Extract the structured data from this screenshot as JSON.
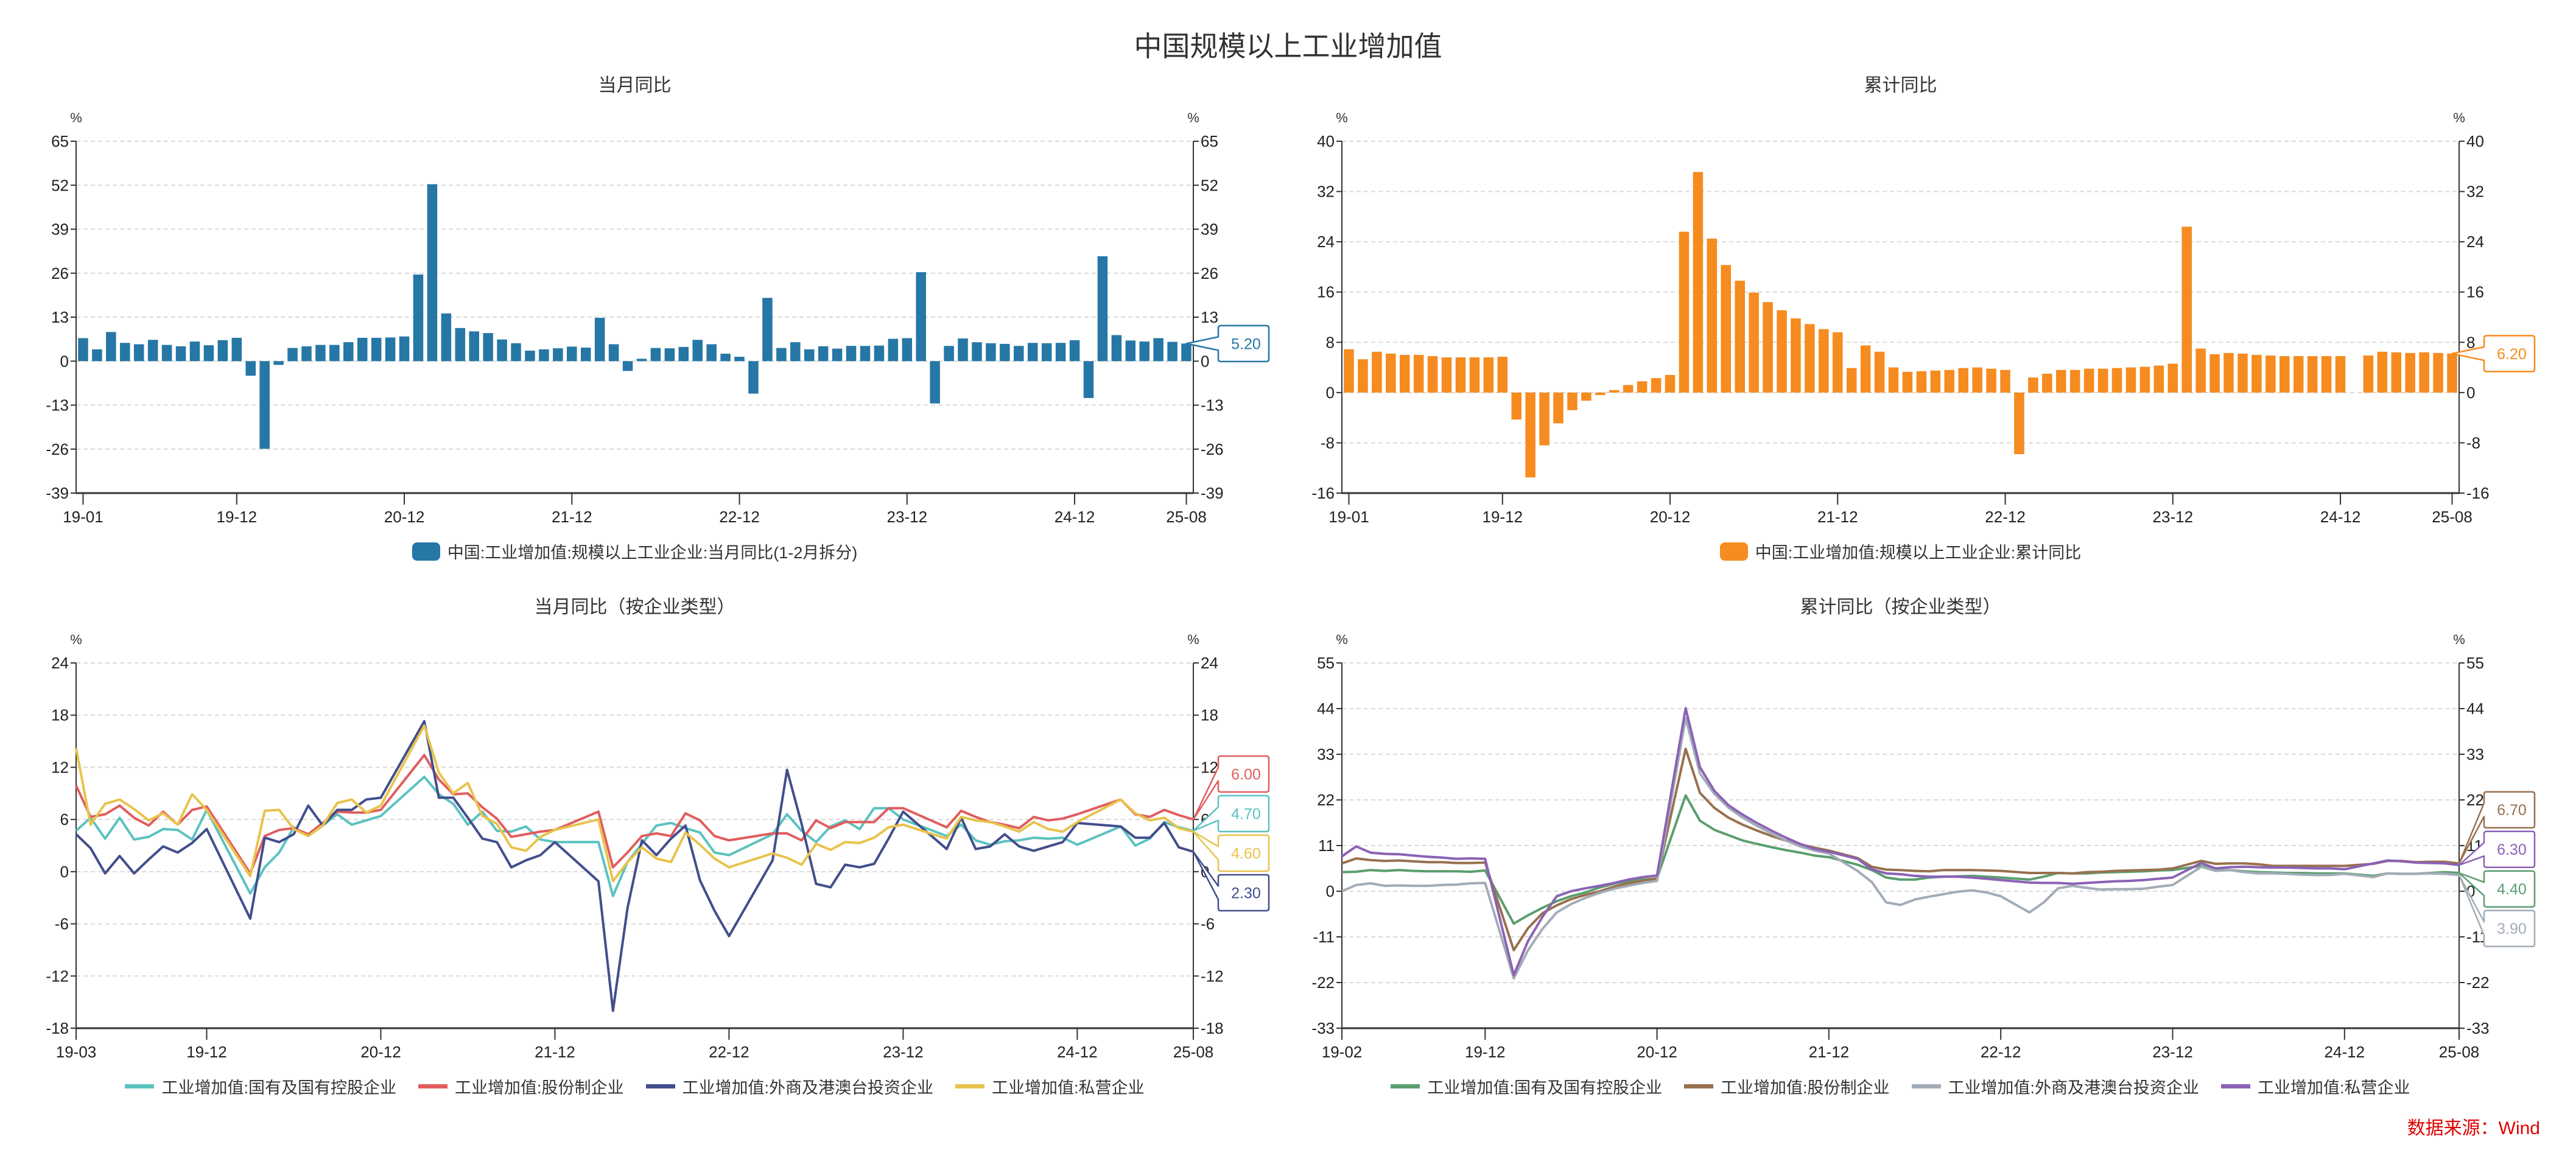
{
  "title": "中国规模以上工业增加值",
  "source": "数据来源：Wind",
  "chart_data": [
    {
      "type": "bar",
      "title": "当月同比",
      "unit_left": "%",
      "unit_right": "%",
      "x_start": "19-01",
      "xticks": [
        "19-01",
        "19-12",
        "20-12",
        "21-12",
        "22-12",
        "23-12",
        "24-12",
        "25-08"
      ],
      "ylim": [
        -39,
        65
      ],
      "yticks": [
        "65",
        "52",
        "39",
        "26",
        "13",
        "0",
        "-13",
        "-26",
        "-39"
      ],
      "grid": true,
      "legend_position": "bottom",
      "series": [
        {
          "name": "中国:工业增加值:规模以上工业企业:当月同比(1-2月拆分)",
          "color": "#2677a6",
          "last_label": "5.20",
          "values": [
            6.8,
            3.5,
            8.6,
            5.4,
            5.0,
            6.3,
            4.8,
            4.4,
            5.8,
            4.7,
            6.2,
            6.9,
            -4.3,
            -25.9,
            -1.1,
            3.9,
            4.4,
            4.8,
            4.8,
            5.6,
            6.9,
            6.9,
            7.0,
            7.3,
            25.6,
            52.3,
            14.1,
            9.8,
            8.8,
            8.3,
            6.4,
            5.3,
            3.1,
            3.5,
            3.8,
            4.3,
            4.0,
            12.8,
            5.0,
            -2.9,
            0.7,
            3.9,
            3.8,
            4.2,
            6.3,
            5.0,
            2.2,
            1.3,
            -9.6,
            18.7,
            3.9,
            5.6,
            3.5,
            4.4,
            3.7,
            4.5,
            4.5,
            4.6,
            6.6,
            6.8,
            26.3,
            -12.5,
            4.5,
            6.7,
            5.6,
            5.3,
            5.1,
            4.5,
            5.4,
            5.3,
            5.4,
            6.2,
            -10.9,
            31.0,
            7.7,
            6.1,
            5.8,
            6.8,
            5.7,
            5.2
          ]
        }
      ]
    },
    {
      "type": "bar",
      "title": "累计同比",
      "unit_left": "%",
      "unit_right": "%",
      "x_start": "19-01",
      "xticks": [
        "19-01",
        "19-12",
        "20-12",
        "21-12",
        "22-12",
        "23-12",
        "24-12",
        "25-08"
      ],
      "ylim": [
        -16,
        40
      ],
      "yticks": [
        "40",
        "32",
        "24",
        "16",
        "8",
        "0",
        "-8",
        "-16"
      ],
      "grid": true,
      "legend_position": "bottom",
      "series": [
        {
          "name": "中国:工业增加值:规模以上工业企业:累计同比",
          "color": "#f68b1f",
          "last_label": "6.20",
          "values": [
            6.9,
            5.3,
            6.5,
            6.2,
            6.0,
            6.0,
            5.8,
            5.6,
            5.6,
            5.6,
            5.6,
            5.7,
            -4.3,
            -13.5,
            -8.4,
            -4.9,
            -2.8,
            -1.3,
            -0.4,
            0.4,
            1.2,
            1.8,
            2.3,
            2.8,
            25.6,
            35.1,
            24.5,
            20.3,
            17.8,
            15.9,
            14.4,
            13.1,
            11.8,
            10.9,
            10.1,
            9.6,
            3.9,
            7.5,
            6.5,
            4.0,
            3.3,
            3.4,
            3.5,
            3.6,
            3.9,
            4.0,
            3.8,
            3.6,
            -9.8,
            2.4,
            3.0,
            3.6,
            3.6,
            3.8,
            3.8,
            3.9,
            4.0,
            4.1,
            4.3,
            4.6,
            26.4,
            7.0,
            6.1,
            6.3,
            6.2,
            6.0,
            5.9,
            5.8,
            5.8,
            5.8,
            5.8,
            5.8,
            null,
            5.9,
            6.5,
            6.4,
            6.3,
            6.4,
            6.3,
            6.2
          ]
        }
      ]
    },
    {
      "type": "line",
      "title": "当月同比（按企业类型）",
      "unit_left": "%",
      "unit_right": "%",
      "x_start": "19-03",
      "xticks": [
        "19-03",
        "19-12",
        "20-12",
        "21-12",
        "22-12",
        "23-12",
        "24-12",
        "25-08"
      ],
      "ylim": [
        -18,
        24
      ],
      "yticks": [
        "24",
        "18",
        "12",
        "6",
        "0",
        "-6",
        "-12",
        "-18"
      ],
      "grid": true,
      "legend_position": "bottom",
      "series": [
        {
          "name": "工业增加值:国有及国有控股企业",
          "color": "#5bc2c0",
          "last_label": "4.70",
          "values": [
            4.7,
            6.2,
            3.8,
            6.2,
            3.7,
            4.0,
            4.9,
            4.8,
            3.7,
            7.1,
            null,
            null,
            -2.5,
            0.5,
            2.2,
            5.1,
            4.1,
            5.3,
            6.6,
            5.4,
            5.9,
            6.4,
            null,
            null,
            10.9,
            8.9,
            7.8,
            5.4,
            6.9,
            4.7,
            4.6,
            5.2,
            3.7,
            3.4,
            null,
            null,
            3.4,
            -2.8,
            1.1,
            3.2,
            5.3,
            5.6,
            5.0,
            4.5,
            2.2,
            1.9,
            null,
            null,
            4.3,
            6.6,
            4.7,
            3.4,
            5.2,
            5.9,
            4.9,
            7.3,
            7.3,
            6.0,
            null,
            null,
            4.1,
            5.4,
            3.6,
            3.1,
            3.5,
            3.6,
            3.9,
            3.8,
            3.9,
            3.1,
            null,
            null,
            5.2,
            3.0,
            3.8,
            5.7,
            5.1,
            4.7
          ]
        },
        {
          "name": "工业增加值:股份制企业",
          "color": "#e15d5d",
          "last_label": "6.00",
          "values": [
            9.9,
            6.3,
            6.6,
            7.6,
            6.2,
            5.3,
            6.9,
            5.4,
            7.1,
            7.5,
            null,
            null,
            -0.2,
            4.1,
            4.8,
            5.0,
            4.3,
            5.6,
            6.9,
            6.8,
            6.8,
            7.1,
            null,
            null,
            13.4,
            10.6,
            8.9,
            9.0,
            7.4,
            6.1,
            4.0,
            4.3,
            4.6,
            4.8,
            null,
            null,
            6.9,
            0.5,
            2.2,
            4.1,
            4.4,
            4.1,
            6.7,
            5.9,
            4.1,
            3.6,
            null,
            null,
            4.4,
            4.4,
            3.6,
            5.9,
            5.0,
            5.7,
            5.7,
            5.7,
            7.3,
            7.3,
            null,
            null,
            5.1,
            7.0,
            6.3,
            5.7,
            5.4,
            5.0,
            6.3,
            5.9,
            6.1,
            6.6,
            null,
            null,
            8.3,
            6.6,
            6.3,
            7.1,
            6.5,
            6.0
          ]
        },
        {
          "name": "工业增加值:外商及港澳台投资企业",
          "color": "#424e8c",
          "last_label": "2.30",
          "values": [
            4.3,
            2.7,
            -0.2,
            1.8,
            -0.2,
            1.4,
            2.9,
            2.2,
            3.3,
            4.9,
            null,
            null,
            -5.4,
            3.9,
            3.4,
            4.3,
            7.6,
            5.3,
            7.1,
            7.1,
            8.3,
            8.5,
            null,
            null,
            17.3,
            8.5,
            8.5,
            6.2,
            3.8,
            3.4,
            0.5,
            1.3,
            1.9,
            3.4,
            null,
            null,
            -1.1,
            -16.0,
            -4.2,
            3.6,
            1.9,
            3.8,
            5.3,
            -1.0,
            -4.5,
            -7.4,
            null,
            null,
            1.3,
            11.7,
            5.5,
            -1.4,
            -1.8,
            0.8,
            0.5,
            0.9,
            3.8,
            6.9,
            null,
            null,
            2.6,
            6.2,
            2.6,
            2.9,
            4.3,
            2.9,
            2.4,
            2.9,
            3.4,
            5.6,
            null,
            null,
            5.2,
            3.9,
            3.9,
            5.6,
            2.8,
            2.3
          ]
        },
        {
          "name": "工业增加值:私营企业",
          "color": "#e8c34c",
          "last_label": "4.60",
          "values": [
            14.2,
            5.4,
            7.8,
            8.3,
            7.2,
            5.9,
            6.7,
            5.4,
            8.9,
            7.1,
            null,
            null,
            -0.5,
            7.0,
            7.1,
            4.9,
            4.1,
            5.3,
            7.9,
            8.3,
            6.8,
            7.6,
            null,
            null,
            16.8,
            11.4,
            9.0,
            10.2,
            6.4,
            5.5,
            2.8,
            2.4,
            4.0,
            4.8,
            null,
            null,
            6.0,
            -1.1,
            1.1,
            2.8,
            1.5,
            1.1,
            4.5,
            3.1,
            1.5,
            0.5,
            null,
            null,
            2.1,
            1.6,
            0.8,
            3.2,
            2.5,
            3.4,
            3.3,
            3.9,
            5.1,
            5.4,
            null,
            null,
            3.8,
            6.3,
            5.9,
            5.7,
            5.2,
            4.6,
            5.7,
            4.9,
            4.6,
            5.7,
            null,
            null,
            8.3,
            6.7,
            5.9,
            6.2,
            5.0,
            4.6
          ]
        }
      ]
    },
    {
      "type": "line",
      "title": "累计同比（按企业类型）",
      "unit_left": "%",
      "unit_right": "%",
      "x_start": "19-02",
      "xticks": [
        "19-02",
        "19-12",
        "20-12",
        "21-12",
        "22-12",
        "23-12",
        "24-12",
        "25-08"
      ],
      "ylim": [
        -33,
        55
      ],
      "yticks": [
        "55",
        "44",
        "33",
        "22",
        "11",
        "0",
        "-11",
        "-22",
        "-33"
      ],
      "grid": true,
      "legend_position": "bottom",
      "series": [
        {
          "name": "工业增加值:国有及国有控股企业",
          "color": "#5b9e6f",
          "last_label": "4.40",
          "values": [
            4.6,
            4.7,
            5.1,
            4.9,
            5.1,
            4.9,
            4.8,
            4.8,
            4.8,
            4.7,
            5.0,
            null,
            -7.8,
            -5.8,
            -4.0,
            -2.4,
            -1.2,
            -0.3,
            0.9,
            1.8,
            2.4,
            2.8,
            3.1,
            null,
            23.1,
            17.0,
            14.8,
            13.5,
            12.2,
            11.4,
            10.6,
            9.9,
            9.3,
            8.6,
            8.2,
            null,
            6.4,
            5.1,
            3.3,
            2.8,
            2.8,
            3.3,
            3.5,
            3.6,
            3.7,
            3.5,
            3.3,
            null,
            2.8,
            3.5,
            4.4,
            4.3,
            4.3,
            4.5,
            4.6,
            4.7,
            4.8,
            5.0,
            5.1,
            null,
            6.1,
            5.1,
            5.1,
            4.8,
            4.6,
            4.5,
            4.4,
            4.4,
            4.3,
            4.3,
            4.3,
            null,
            3.7,
            4.3,
            4.2,
            4.2,
            4.4,
            4.6,
            4.4
          ]
        },
        {
          "name": "工业增加值:股份制企业",
          "color": "#98704f",
          "last_label": "6.70",
          "values": [
            6.7,
            7.9,
            7.5,
            7.3,
            7.4,
            7.2,
            7.0,
            7.0,
            6.8,
            6.8,
            6.9,
            null,
            -14.2,
            -8.9,
            -5.3,
            -3.4,
            -1.9,
            -0.9,
            0.0,
            1.1,
            1.9,
            2.5,
            3.1,
            null,
            34.3,
            23.7,
            20.1,
            17.7,
            16.0,
            14.6,
            13.3,
            12.2,
            11.3,
            10.5,
            9.8,
            null,
            8.0,
            5.9,
            5.2,
            5.1,
            4.9,
            4.8,
            5.1,
            5.1,
            5.1,
            5.0,
            4.9,
            null,
            4.4,
            4.4,
            4.4,
            4.3,
            4.6,
            4.7,
            4.9,
            5.0,
            5.1,
            5.2,
            5.5,
            null,
            7.3,
            6.6,
            6.7,
            6.7,
            6.5,
            6.1,
            6.1,
            6.1,
            6.1,
            6.1,
            6.1,
            null,
            6.6,
            7.3,
            7.3,
            7.0,
            7.1,
            7.1,
            6.7
          ]
        },
        {
          "name": "工业增加值:外商及港澳台投资企业",
          "color": "#a2acb7",
          "last_label": "3.90",
          "values": [
            0.0,
            1.5,
            1.9,
            1.3,
            1.4,
            1.3,
            1.3,
            1.5,
            1.6,
            1.9,
            2.0,
            null,
            -21.0,
            -14.2,
            -9.1,
            -5.1,
            -3.1,
            -1.6,
            -0.4,
            0.6,
            1.3,
            2.0,
            2.5,
            null,
            41.7,
            28.4,
            23.5,
            20.1,
            17.7,
            15.7,
            13.9,
            12.2,
            10.8,
            9.8,
            9.1,
            null,
            4.9,
            2.2,
            -2.7,
            -3.3,
            -2.0,
            -1.3,
            -0.7,
            -0.1,
            0.2,
            -0.3,
            -1.2,
            null,
            -5.1,
            -2.7,
            0.7,
            1.3,
            0.8,
            0.4,
            0.5,
            0.5,
            0.6,
            1.1,
            1.5,
            null,
            5.9,
            4.9,
            5.1,
            4.6,
            4.3,
            4.3,
            4.2,
            4.0,
            3.9,
            3.9,
            4.2,
            null,
            3.4,
            4.3,
            4.2,
            4.2,
            4.3,
            4.2,
            3.9
          ]
        },
        {
          "name": "工业增加值:私营企业",
          "color": "#8b62b5",
          "last_label": "6.30",
          "values": [
            8.4,
            10.8,
            9.3,
            9.0,
            8.9,
            8.6,
            8.3,
            8.1,
            7.8,
            7.9,
            7.8,
            null,
            -20.2,
            -12.0,
            -6.2,
            -1.2,
            0.0,
            0.7,
            1.3,
            2.0,
            2.8,
            3.4,
            3.8,
            null,
            44.1,
            29.9,
            24.2,
            20.7,
            18.4,
            16.4,
            14.6,
            12.9,
            11.4,
            10.2,
            9.5,
            null,
            7.8,
            5.3,
            4.3,
            4.1,
            3.7,
            3.5,
            3.5,
            3.5,
            3.3,
            3.0,
            2.7,
            null,
            2.1,
            2.0,
            2.0,
            1.8,
            2.0,
            2.2,
            2.4,
            2.5,
            2.7,
            3.0,
            3.3,
            null,
            6.8,
            5.5,
            5.8,
            5.9,
            5.8,
            5.7,
            5.7,
            5.6,
            5.5,
            5.5,
            5.3,
            null,
            6.7,
            7.4,
            7.2,
            6.9,
            6.8,
            6.7,
            6.3
          ]
        }
      ]
    }
  ]
}
